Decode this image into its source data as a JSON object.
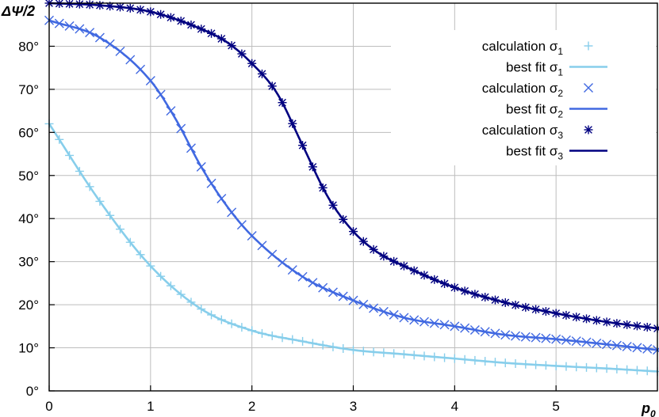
{
  "chart_data": {
    "type": "line",
    "xlabel_main": "p",
    "xlabel_sub": "0",
    "ylabel": "ΔΨ/2",
    "xlim": [
      0,
      6
    ],
    "ylim": [
      0,
      90
    ],
    "x_ticks": [
      0,
      1,
      2,
      3,
      4,
      5
    ],
    "x_tick_labels": [
      "0",
      "1",
      "2",
      "3",
      "4",
      "5"
    ],
    "y_ticks": [
      0,
      10,
      20,
      30,
      40,
      50,
      60,
      70,
      80
    ],
    "y_tick_labels": [
      "0°",
      "10°",
      "20°",
      "30°",
      "40°",
      "50°",
      "60°",
      "70°",
      "80°"
    ],
    "grid": true,
    "legend_position": "top-right",
    "colors": {
      "sigma1": "#87ceeb",
      "sigma2": "#4169e1",
      "sigma3": "#000080",
      "grid": "#bdbdbd",
      "axes": "#000000"
    },
    "series": [
      {
        "id": "sigma1",
        "calc_label": "calculation σ",
        "fit_label": "best fit σ",
        "subscript": "1",
        "marker": "plus",
        "x": [
          0,
          0.5,
          1,
          1.5,
          2,
          2.5,
          3,
          3.5,
          4,
          4.5,
          5,
          5.5,
          6
        ],
        "values": [
          62,
          44,
          29,
          19,
          14,
          11.5,
          9.5,
          8.5,
          7.5,
          6.5,
          5.8,
          5.2,
          4.5
        ]
      },
      {
        "id": "sigma2",
        "calc_label": "calculation σ",
        "fit_label": "best fit σ",
        "subscript": "2",
        "marker": "cross",
        "x": [
          0,
          0.5,
          1,
          1.25,
          1.5,
          1.75,
          2,
          2.5,
          3,
          3.5,
          4,
          4.5,
          5,
          5.5,
          6
        ],
        "values": [
          86,
          82,
          72,
          63,
          52,
          43,
          36,
          26.5,
          21,
          17,
          15,
          13,
          12,
          10.8,
          9.5
        ]
      },
      {
        "id": "sigma3",
        "calc_label": "calculation σ",
        "fit_label": "best fit σ",
        "subscript": "3",
        "marker": "asterisk",
        "x": [
          0,
          0.5,
          1,
          1.5,
          1.75,
          2,
          2.25,
          2.5,
          2.75,
          3,
          3.25,
          3.5,
          4,
          4.5,
          5,
          5.5,
          6
        ],
        "values": [
          90,
          89.5,
          88,
          84,
          81,
          76,
          69,
          57,
          45,
          37,
          32,
          29,
          24,
          20.5,
          18,
          16,
          14.5
        ]
      }
    ]
  }
}
